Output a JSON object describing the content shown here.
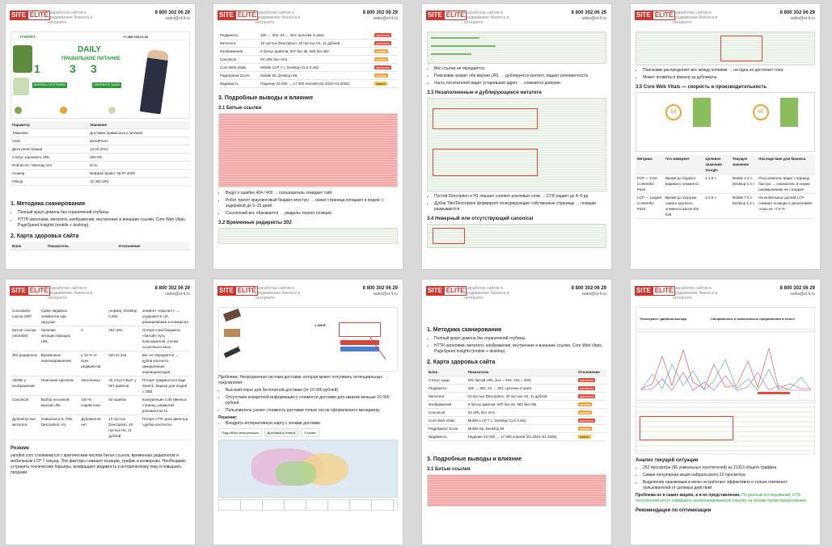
{
  "header": {
    "logo_left": "SITE",
    "logo_right": "ÉLITÉ",
    "tagline": "Разработка сайтов и продвижение бизнеса в интернете",
    "phone": "8 800 302 06 29",
    "email": "sales@st-lt.ru"
  },
  "p1": {
    "banner": {
      "brand": "YAMDIET",
      "title": "DAILY",
      "subtitle": "ПРАВИЛЬНОЕ ПИТАНИЕ",
      "phone": "+7 495 103 02 00",
      "step1": "1",
      "step2": "3",
      "step3": "3",
      "green1": "ВЫБРАТЬ ПРОГРАММУ",
      "green2": "ОФОРМИТЬ ЗАКАЗ"
    },
    "table_headers": [
      "Параметр",
      "Значение"
    ],
    "rows": [
      [
        "Тематика",
        "Доставка правильного питания"
      ],
      [
        "CMS",
        "WordPress"
      ],
      [
        "Дата регистрации",
        "12.04.2014"
      ],
      [
        "Статус корневого URL",
        "200 OK"
      ],
      [
        "Robots.txt / Sitemap.xml",
        "Есть"
      ],
      [
        "Сканер",
        "Netpeak Spider, 06.07.2025"
      ],
      [
        "Обход",
        "22 463 URL"
      ]
    ],
    "h_method": "1. Методика сканирования",
    "li1": "Полный краул домена без ограничений глубины.",
    "li2": "HTTP-заголовки, метатеги, изображения, внутренние и внешние ссылки, Core Web Vitals, PageSpeed Insights (mobile + desktop).",
    "h_map": "2. Карта здоровья сайта",
    "map_headers": [
      "Блок",
      "Показатель",
      "Отклонение"
    ]
  },
  "p2": {
    "rows": [
      [
        "Редиректы",
        "320 → 302, 24 → 301; цепочки 4 шага",
        "критично"
      ],
      [
        "Метатеги",
        "10 пустых Description, 20 пустых H1, 11 дублей",
        "критично"
      ],
      [
        "Изображения",
        "8 битых файлов, 507 без alt, 583 без title",
        "средне"
      ],
      [
        "Canonical",
        "63 URL без тега",
        "средне"
      ],
      [
        "Core Web Vitals",
        "Mobile LCP 7 с, Desktop CLS 0.262",
        "критично"
      ],
      [
        "PageSpeed Score",
        "Mobile 65, Desktop 59",
        "средне"
      ],
      [
        "Видимость",
        "Падение 24 000 → 17 000 ключей (01.2024–01.2025)",
        "важно"
      ]
    ],
    "h3": "3. Подробные выводы и влияние",
    "h31": "3.1 Битые ссылки",
    "li1": "Ведут к ошибке 404 / 400 → пользователь покидает сайт.",
    "li2": "Робот тратит краулинговый бюджет впустую → новая страница попадает в индекс с задержкой до 5–15 дней.",
    "li3": "Ссылочный вес обрывается → разделы теряют позиции.",
    "h32": "3.2 Временные редиректы 302"
  },
  "p3": {
    "li1": "Вес ссылки не передаётся.",
    "li2": "Поисковик хранит обе версии URL → дублируется контент, падает релевантность.",
    "li3": "Часть посетителей видит устаревший адрес → снижается доверие.",
    "h33": "3.3 Незаполненные и дублирующиеся метатеги",
    "li4": "Пустой Description и H1 лишают сниппет ключевых слов → CTR падает до 4–6 pp.",
    "li5": "Дубли Title/Description формируют конкурирующие собственные страницы → позиции размываются.",
    "h34": "3.4 Неверный или отсутствующий canonical"
  },
  "p4": {
    "li1": "Поисковик распределяет вес между копиями → ни одна не достигает топа.",
    "li2": "Может появиться фильтр за дубликаты.",
    "h35": "3.5 Core Web Vitals — скорость и производительность",
    "score1": "59",
    "score2": "65",
    "headers": [
      "Метрика",
      "Что измеряет",
      "Целевое значение Google",
      "Текущее значение",
      "Последствие для бизнеса"
    ],
    "rows": [
      [
        "FCP — First Contentful Paint",
        "Время до первого видимого элемента",
        "≤ 1.8 с",
        "Mobile 1.2 с, Desktop 0.4 с",
        "Пользователь видит страницу быстро → показатель в норме, ранжирование не страдает"
      ],
      [
        "LCP — Largest Contentful Paint",
        "Время до загрузки самого крупного элемента above-the fold",
        "≤ 2.5 с",
        "Mobile 7.0 с, Desktop 1.2 с",
        "На мобильных долгий LCP снижает позиции и увеличивает отказ на +7.9 %"
      ]
    ]
  },
  "p5": {
    "rows": [
      [
        "Cumulative Layout Shift",
        "Сдвиг видимых элементов при загрузке",
        "",
        "(норма), Desktop 0.262",
        "элемент «прыгает» → ухудшается UX, ранжирование и конверсия"
      ],
      [
        "Битые ссылки (404/400)",
        "Наличие несуществующих URL",
        "0",
        "291 URL",
        "Потеря crawl-бюджета, «битый» путь пользователя, утечка ссылочного веса"
      ],
      [
        "302 редиректы",
        "Временные перенаправления",
        "≤ 10 % от всех редиректов",
        "320 из 344",
        "Вес не передаётся → дубли контента, замедленная переиндексация"
      ],
      [
        "Alt/title у изображений",
        "Описания картинок",
        "Заполнены",
        "Alt отсутствует у 507 файлов",
        "Потеря трафика из Image Search, барьер для людей с ОВЗ"
      ],
      [
        "Canonical",
        "Выбор основной версии URL",
        "100 % корректных",
        "63 ошибок",
        "Конкуренция собственных страниц, размытие релевантности"
      ],
      [
        "Дубли/пустые метатеги",
        "Уникальность Title, Description, H1",
        "Дубликатов нет",
        "10 пустых Description, 20 пустых H1, 11 дублей",
        "Потеря CTR, риск фильтра «дубли контента»"
      ]
    ],
    "h_resume": "Резюме",
    "resume": "yamdiet.com сталкивается с критическим числом битых ссылок, временных редиректов и мобильным LCP 7 секунд. Эти факторы снижают позиции, трафик и конверсию. Необходимо устранить технические барьеры, возвращает видимость к историческому пику и повышать продажи."
  },
  "p6": {
    "price": "1 450 ₽",
    "problem": "Проблема: Непрозрачная система доставки, которая может отпугивать потенциальных покупателей:",
    "li1": "Высокий порог для бесплатной доставки (от 10 000 рублей)",
    "li2": "Отсутствие конкретной информации о стоимости доставки для заказов меньше 10 000 рублей.",
    "li3": "Пользователь узнает стоимость доставки только после оформления к менеджеру",
    "solution": "Решение:",
    "li4": "Внедрить интерактивную карту с зонами доставки",
    "tab1": "Подробная информация",
    "tab2": "Доставка и оплата",
    "tab3": "Отзывы"
  },
  "p7": {
    "h_method": "1. Методика сканирования",
    "li1": "Полный краул домена без ограничений глубины.",
    "li2": "HTTP-заголовки, метатеги, изображения, внутренние и внешние ссылки, Core Web Vitals, PageSpeed Insights (mobile + desktop).",
    "h_map": "2. Карта здоровья сайта",
    "headers": [
      "Блок",
      "Показатель",
      "Отклонение"
    ],
    "rows": [
      [
        "Статус-коды",
        "291 битый URL (4xx = 404, 234 = 400)",
        "критично"
      ],
      [
        "Редиректы",
        "320 → 302, 24 → 301; цепочки 4 шага",
        "критично"
      ],
      [
        "Метатеги",
        "10 пустых Description, 20 пустых H1, 11 дублей",
        "критично"
      ],
      [
        "Изображения",
        "8 битых файлов, 507 без alt, 583 без title",
        "средне"
      ],
      [
        "Canonical",
        "63 URL без тега",
        "средне"
      ],
      [
        "Core Web Vitals",
        "Mobile LCP 7 с, Desktop CLS 0.262",
        "критично"
      ],
      [
        "PageSpeed Score",
        "Mobile 65, Desktop 59",
        "средне"
      ],
      [
        "Видимость",
        "Падение 24 000 → 17 000 ключей (01.2024–01.2025)",
        "важно"
      ]
    ],
    "h3": "3. Подробные выводы и влияние",
    "h31": "3.1 Битые ссылки"
  },
  "p8": {
    "promo1": "Теплотрасс: двойная выгода",
    "promo2": "Специальные и комплексные предложения в сезон!",
    "h_analysis": "Анализ текущей ситуации",
    "li1": "252 просмотра (96 уникальных посетителей) из 31313 общего трафика",
    "li2": "Самая популярная акция набрала всего 22 просмотра",
    "li3": "Выделение оранжевым в меню не работает эффективно и только отвлекает пользователей от целевых действий.",
    "problem_label": "Проблема не в самих акциях, а в их представлении.",
    "problem_text": "По данным исследований, 67% посетителей могут совершить незапланированную покупку на основе промо-предложения.",
    "h_rec": "Рекомендации по оптимизации"
  }
}
